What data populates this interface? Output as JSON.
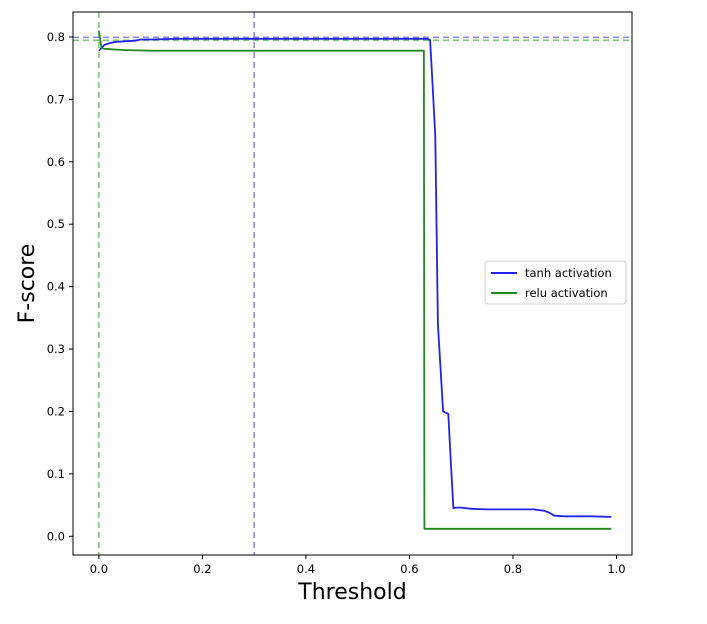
{
  "chart_data": {
    "type": "line",
    "xlabel": "Threshold",
    "ylabel": "F-score",
    "xlim": [
      -0.05,
      1.03
    ],
    "ylim": [
      -0.03,
      0.84
    ],
    "xticks": [
      0.0,
      0.2,
      0.4,
      0.6,
      0.8,
      1.0
    ],
    "xtick_labels": [
      "0.0",
      "0.2",
      "0.4",
      "0.6",
      "0.8",
      "1.0"
    ],
    "yticks": [
      0.0,
      0.1,
      0.2,
      0.3,
      0.4,
      0.5,
      0.6,
      0.7,
      0.8
    ],
    "ytick_labels": [
      "0.0",
      "0.1",
      "0.2",
      "0.3",
      "0.4",
      "0.5",
      "0.6",
      "0.7",
      "0.8"
    ],
    "grid": false,
    "legend_position": "center-right",
    "series": [
      {
        "name": "tanh activation",
        "color": "#2222ee",
        "x": [
          0.0,
          0.01,
          0.02,
          0.03,
          0.05,
          0.07,
          0.08,
          0.1,
          0.15,
          0.2,
          0.3,
          0.4,
          0.5,
          0.6,
          0.635,
          0.64,
          0.645,
          0.65,
          0.655,
          0.66,
          0.665,
          0.67,
          0.675,
          0.68,
          0.685,
          0.69,
          0.7,
          0.72,
          0.75,
          0.8,
          0.84,
          0.85,
          0.86,
          0.87,
          0.88,
          0.9,
          0.95,
          0.99
        ],
        "y": [
          0.778,
          0.787,
          0.79,
          0.792,
          0.793,
          0.794,
          0.796,
          0.796,
          0.797,
          0.797,
          0.797,
          0.797,
          0.797,
          0.797,
          0.797,
          0.795,
          0.72,
          0.64,
          0.34,
          0.27,
          0.2,
          0.198,
          0.196,
          0.12,
          0.045,
          0.046,
          0.046,
          0.044,
          0.043,
          0.043,
          0.043,
          0.042,
          0.041,
          0.038,
          0.033,
          0.032,
          0.032,
          0.031
        ]
      },
      {
        "name": "relu activation",
        "color": "#228822",
        "x": [
          0.0,
          0.005,
          0.01,
          0.05,
          0.1,
          0.15,
          0.2,
          0.3,
          0.4,
          0.5,
          0.6,
          0.628,
          0.629,
          0.7,
          0.8,
          0.9,
          0.99
        ],
        "y": [
          0.81,
          0.782,
          0.781,
          0.779,
          0.778,
          0.778,
          0.778,
          0.778,
          0.778,
          0.778,
          0.778,
          0.778,
          0.012,
          0.012,
          0.012,
          0.012,
          0.012
        ]
      }
    ],
    "reference_lines": [
      {
        "orientation": "vertical",
        "value": 0.0,
        "color": "#66bb66",
        "style": "dashed"
      },
      {
        "orientation": "vertical",
        "value": 0.3,
        "color": "#7777ee",
        "style": "dashed"
      },
      {
        "orientation": "horizontal",
        "value": 0.797,
        "color": "#7777ee",
        "style": "dashed"
      },
      {
        "orientation": "horizontal",
        "value": 0.797,
        "color": "#66bb66",
        "style": "dashed"
      }
    ]
  }
}
